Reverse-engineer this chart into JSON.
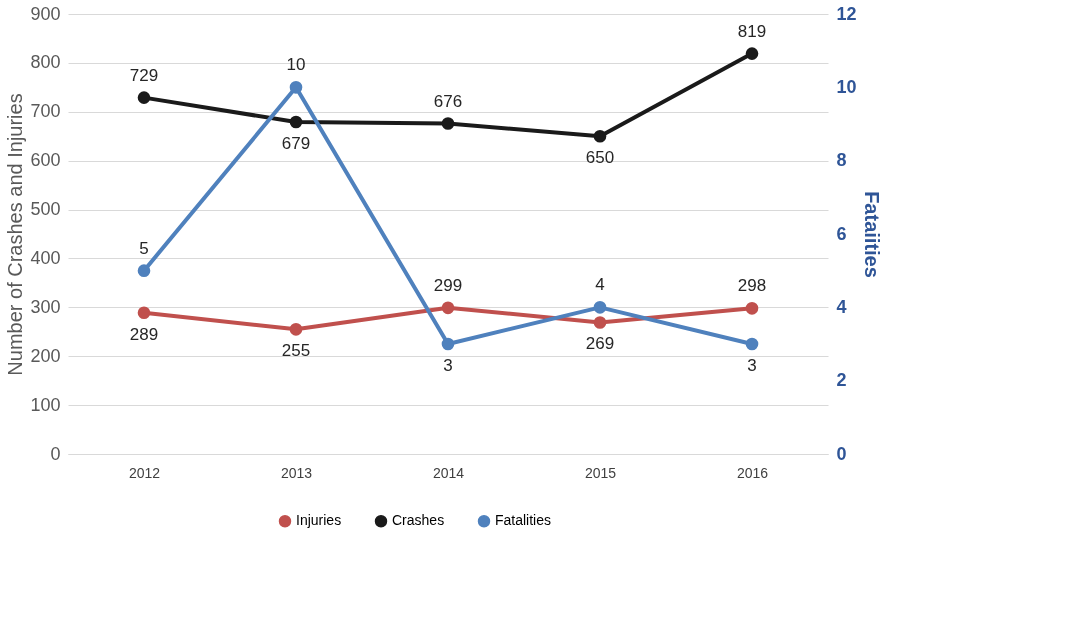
{
  "chart_data": {
    "type": "line",
    "categories": [
      "2012",
      "2013",
      "2014",
      "2015",
      "2016"
    ],
    "ylabel": "Number of Crashes and Injuries",
    "y2label": "Fataiities",
    "ylim": [
      0,
      900
    ],
    "yticks": [
      0,
      100,
      200,
      300,
      400,
      500,
      600,
      700,
      800,
      900
    ],
    "y2lim": [
      0,
      12
    ],
    "y2ticks": [
      0,
      2,
      4,
      6,
      8,
      10,
      12
    ],
    "series": [
      {
        "name": "Injuries",
        "color": "#c0504d",
        "values": [
          289,
          255,
          299,
          269,
          298
        ]
      },
      {
        "name": "Crashes",
        "color": "#1a1a1a",
        "values": [
          729,
          679,
          676,
          650,
          819
        ]
      },
      {
        "name": "Fatalities",
        "color": "#4f81bd",
        "values": [
          5,
          10,
          3,
          4,
          3
        ],
        "axis": "y2"
      }
    ],
    "data_labels": true,
    "grid": "y",
    "legend": "bottom",
    "marker": "circle",
    "line_style": "solid"
  }
}
